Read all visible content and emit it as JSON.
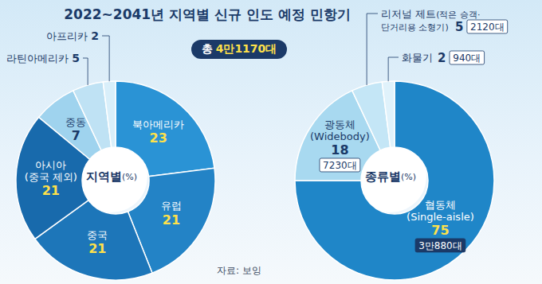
{
  "title": "2022~2041년 지역별 신규 인도 예정 민항기",
  "total_label": "총 4만1170대",
  "source": "자료: 보잉",
  "chart_data": [
    {
      "type": "pie",
      "title": "지역별(%)",
      "categories": [
        "북아메리카",
        "유럽",
        "중국",
        "아시아(중국 제외)",
        "중동",
        "라틴아메리카",
        "아프리카"
      ],
      "values": [
        23,
        21,
        21,
        21,
        7,
        5,
        2
      ],
      "colors": [
        "#2a93d5",
        "#2383c6",
        "#1d76b9",
        "#186aac",
        "#9fd3ee",
        "#bfe2f4",
        "#d9effa"
      ],
      "data_labels": true
    },
    {
      "type": "pie",
      "title": "종류별(%)",
      "categories": [
        "협동체(Single-aisle)",
        "광동체(Widebody)",
        "리저널 제트(적은 승객·단거리용 소형기)",
        "화물기"
      ],
      "values": [
        75,
        18,
        5,
        2
      ],
      "count_labels": [
        "3만880대",
        "7230대",
        "2120대",
        "940대"
      ],
      "colors": [
        "#1f86c8",
        "#a8d9f0",
        "#c4e6f6",
        "#e0f2fb"
      ],
      "data_labels": true
    }
  ]
}
